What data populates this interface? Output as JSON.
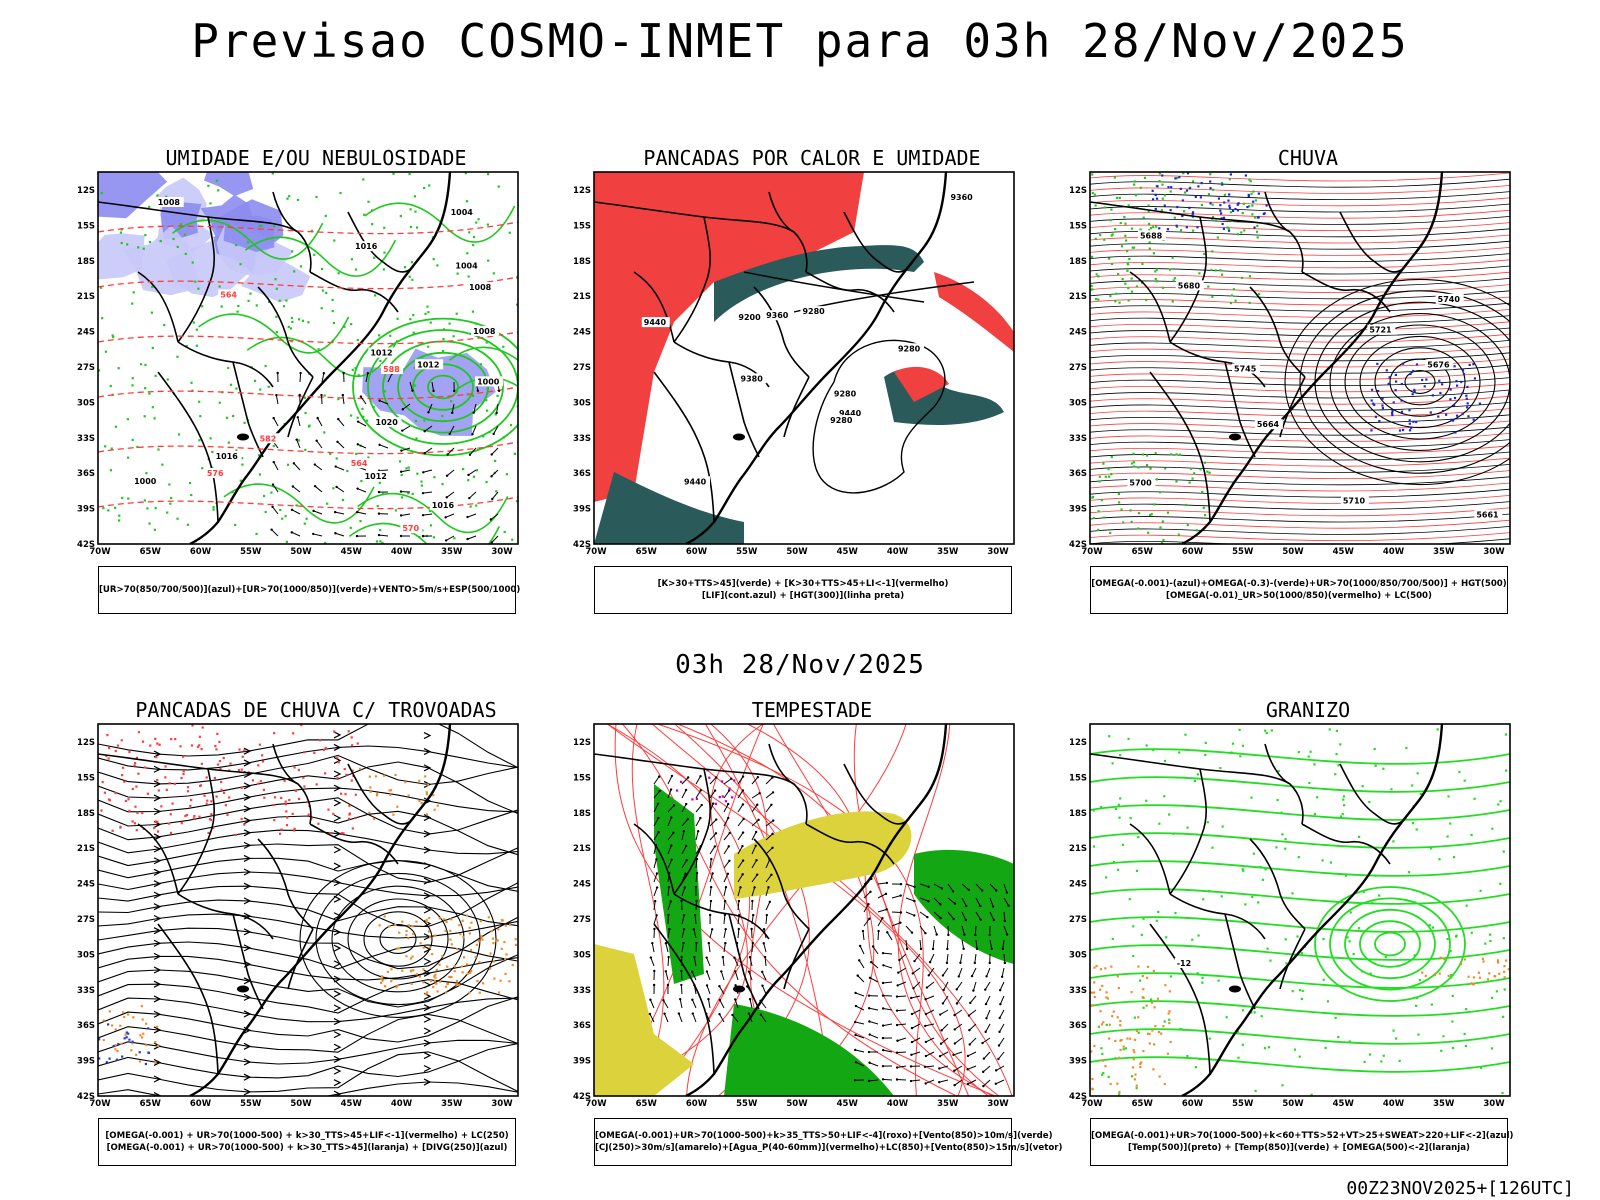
{
  "title": "Previsao COSMO-INMET  para 03h 28/Nov/2025",
  "mid_label": "03h 28/Nov/2025",
  "footer": "00Z23NOV2025+[126UTC]",
  "axes": {
    "lat": [
      "12S",
      "15S",
      "18S",
      "21S",
      "24S",
      "27S",
      "30S",
      "33S",
      "36S",
      "39S",
      "42S"
    ],
    "lon": [
      "70W",
      "65W",
      "60W",
      "55W",
      "50W",
      "45W",
      "40W",
      "35W",
      "30W"
    ]
  },
  "colors": {
    "blue": "#8c8cf0",
    "lavender": "#c8c8f8",
    "green": "#1ec81e",
    "bright_green": "#22dd22",
    "red": "#ff3c3c",
    "red_fill": "#f04040",
    "teal": "#2a5a5a",
    "orange": "#f08c28",
    "yellow": "#dcd23c",
    "dark_green": "#13a813",
    "purple": "#b400c8"
  },
  "panels": [
    {
      "id": "umidade",
      "title": "UMIDADE E/OU NEBULOSIDADE",
      "legend": [
        "[UR>70(850/700/500)](azul)+[UR>70(1000/850)](verde)+VENTO>5m/s+ESP(500/1000)"
      ],
      "labels": [
        "1012",
        "1008",
        "1016",
        "1004",
        "1000",
        "1016",
        "1012",
        "1008",
        "1012",
        "1020",
        "1016",
        "1000",
        "1004",
        "1008",
        "564",
        "570",
        "582",
        "588",
        "564",
        "576"
      ]
    },
    {
      "id": "pancadas-calor",
      "title": "PANCADAS POR CALOR E UMIDADE",
      "legend": [
        "[K>30+TTS>45](verde) + [K>30+TTS>45+LI<-1](vermelho)",
        "[LIF](cont.azul) + [HGT(300)](linha preta)"
      ],
      "labels": [
        "9440",
        "9440",
        "9360",
        "9280",
        "9380",
        "9360",
        "9280",
        "9280",
        "9200",
        "9280",
        "9440"
      ]
    },
    {
      "id": "chuva",
      "title": "CHUVA",
      "legend": [
        "[OMEGA(-0.001)-(azul)+OMEGA(-0.3)-(verde)+UR>70(1000/850/700/500)] + HGT(500)",
        "[OMEGA(-0.01)_UR>50(1000/850)(vermelho) + LC(500)"
      ],
      "labels": [
        "5740",
        "5721",
        "5745",
        "5700",
        "5688",
        "5664",
        "5680",
        "5676",
        "5661",
        "5710"
      ]
    },
    {
      "id": "pancadas-trovoadas",
      "title": "PANCADAS DE CHUVA C/ TROVOADAS",
      "legend": [
        "[OMEGA(-0.001) + UR>70(1000-500) + k>30_TTS>45+LIF<-1](vermelho) + LC(250)",
        "[OMEGA(-0.001) + UR>70(1000-500) + k>30_TTS>45](laranja) + [DIVG(250)](azul)"
      ]
    },
    {
      "id": "tempestade",
      "title": "TEMPESTADE",
      "legend": [
        "[OMEGA(-0.001)+UR>70(1000-500)+k>35_TTS>50+LIF<-4](roxo)+[Vento(850)>10m/s](verde)",
        "[CJ(250)>30m/s](amarelo)+[Agua_P(40-60mm)](vermelho)+LC(850)+[Vento(850)>15m/s](vetor)"
      ]
    },
    {
      "id": "granizo",
      "title": "GRANIZO",
      "legend": [
        "[OMEGA(-0.001)+UR>70(1000-500)+k<60+TTS>52+VT>25+SWEAT>220+LIF<-2](azul)",
        "[Temp(500)](preto) + [Temp(850)](verde) + [OMEGA(500)<-2](laranja)"
      ],
      "labels": [
        "-12"
      ]
    }
  ]
}
